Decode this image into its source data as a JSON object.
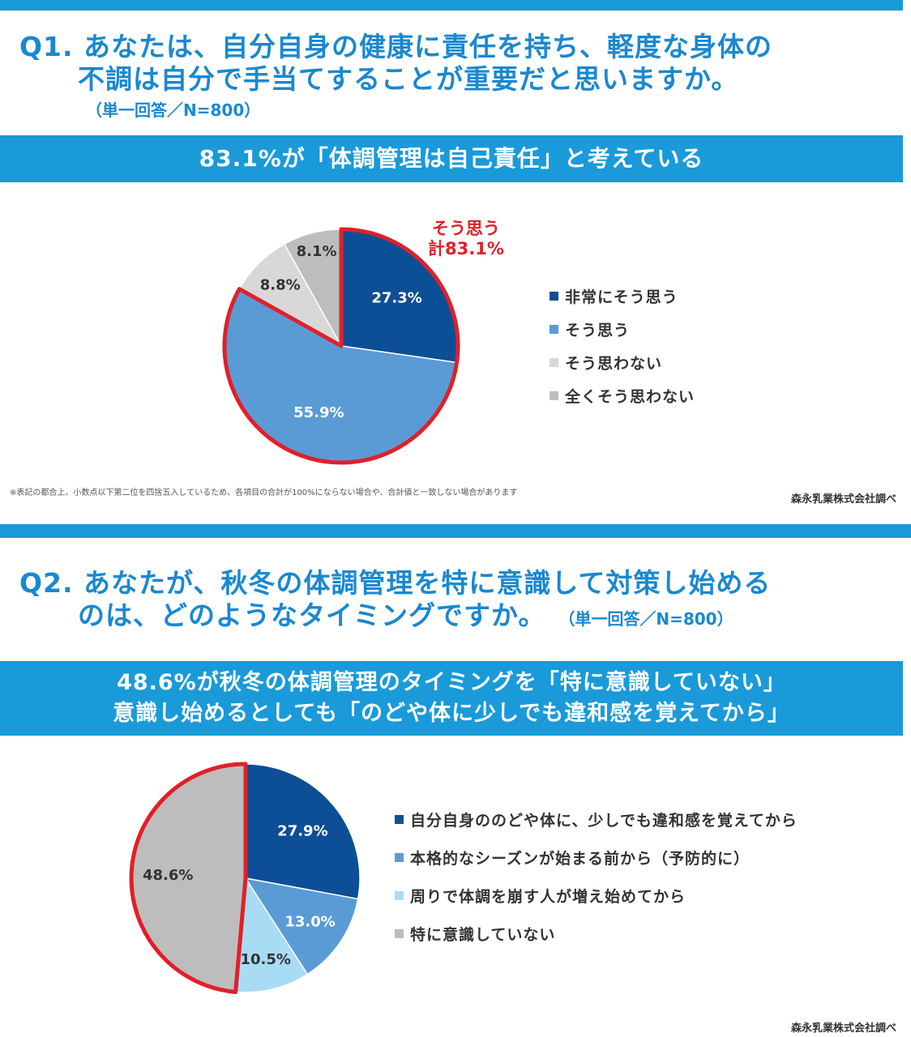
{
  "q1": {
    "title_line1": "Q1. あなたは、自分自身の健康に責任を持ち、軽度な身体の",
    "title_line2": "不調は自分で手当てすることが重要だと思いますか。",
    "note": "（単一回答／N=800）",
    "banner": "83.1%が「体調管理は自己責任」と考えている",
    "highlight_line1": "そう思う",
    "highlight_line2": "計83.1%",
    "footnote": "※表記の都合上、小数点以下第二位を四捨五入しているため、各項目の合計が100%にならない場合や、合計値と一致しない場合があります",
    "source": "森永乳業株式会社調べ"
  },
  "q2": {
    "title_line1": "Q2. あなたが、秋冬の体調管理を特に意識して対策し始める",
    "title_line2": "のは、どのようなタイミングですか。",
    "note": "（単一回答／N=800）",
    "banner_line1": "48.6%が秋冬の体調管理のタイミングを「特に意識していない」",
    "banner_line2": "意識し始めるとしても「のどや体に少しでも違和感を覚えてから」",
    "source": "森永乳業株式会社調べ"
  },
  "colors": {
    "accent_blue": "#1a9ad9",
    "title_blue": "#1a88d0",
    "highlight_red": "#e0202a"
  },
  "chart_data": [
    {
      "type": "pie",
      "categories": [
        "非常にそう思う",
        "そう思う",
        "そう思わない",
        "全くそう思わない"
      ],
      "values": [
        27.3,
        55.9,
        8.8,
        8.1
      ],
      "labels": [
        "27.3%",
        "55.9%",
        "8.8%",
        "8.1%"
      ],
      "colors": [
        "#0d4f96",
        "#5b9bd5",
        "#d8d8d8",
        "#bdbdbd"
      ],
      "label_colors": [
        "#ffffff",
        "#ffffff",
        "#333333",
        "#333333"
      ],
      "start": "12 o'clock, clockwise",
      "highlighted_categories": [
        "非常にそう思う",
        "そう思う"
      ],
      "highlight_total": 83.1,
      "legend_position": "right"
    },
    {
      "type": "pie",
      "categories": [
        "自分自身ののどや体に、少しでも違和感を覚えてから",
        "本格的なシーズンが始まる前から（予防的に）",
        "周りで体調を崩す人が増え始めてから",
        "特に意識していない"
      ],
      "values": [
        27.9,
        13.0,
        10.5,
        48.6
      ],
      "labels": [
        "27.9%",
        "13.0%",
        "10.5%",
        "48.6%"
      ],
      "colors": [
        "#0d4f96",
        "#5b9bd5",
        "#a8dcf5",
        "#bdbdbd"
      ],
      "label_colors": [
        "#ffffff",
        "#ffffff",
        "#333333",
        "#333333"
      ],
      "start": "12 o'clock, clockwise",
      "highlighted_categories": [
        "特に意識していない"
      ],
      "legend_position": "right"
    }
  ]
}
